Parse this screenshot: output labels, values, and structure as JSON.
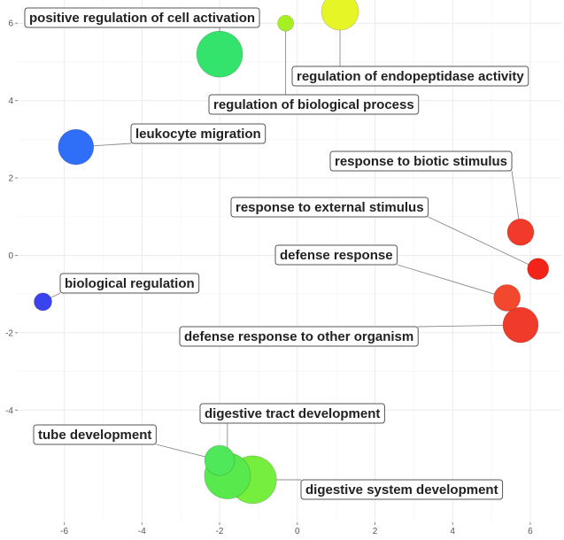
{
  "chart_data": {
    "type": "scatter",
    "title": "",
    "xlabel": "",
    "ylabel": "",
    "xlim": [
      -7.2,
      6.8
    ],
    "ylim": [
      -6.9,
      6.6
    ],
    "x_ticks": [
      -6,
      -4,
      -2,
      0,
      2,
      4,
      6
    ],
    "y_ticks": [
      -4,
      -2,
      0,
      2,
      4,
      6
    ],
    "x_tick_labels": [
      "-6",
      "-4",
      "-2",
      "0",
      "2",
      "4",
      "6"
    ],
    "y_tick_labels": [
      "-4",
      "-2",
      "0",
      "2",
      "4",
      "6"
    ],
    "grid": true,
    "legend": "none",
    "points": [
      {
        "label": "positive regulation of cell activation",
        "x": -2.0,
        "y": 5.2,
        "size": 26,
        "color": "#33e36b"
      },
      {
        "label": "regulation of biological process",
        "x": -0.3,
        "y": 6.0,
        "size": 9,
        "color": "#a6ef22"
      },
      {
        "label": "regulation of endopeptidase activity",
        "x": 1.1,
        "y": 6.3,
        "size": 21,
        "color": "#e6f526"
      },
      {
        "label": "leukocyte migration",
        "x": -5.7,
        "y": 2.8,
        "size": 20,
        "color": "#2f6ef6"
      },
      {
        "label": "response to biotic stimulus",
        "x": 5.75,
        "y": 0.6,
        "size": 15,
        "color": "#f23a2a"
      },
      {
        "label": "response to external stimulus",
        "x": 6.2,
        "y": -0.35,
        "size": 12,
        "color": "#f22318"
      },
      {
        "label": "defense response",
        "x": 5.4,
        "y": -1.1,
        "size": 15,
        "color": "#f2482e"
      },
      {
        "label": "defense response to other organism",
        "x": 5.75,
        "y": -1.8,
        "size": 20,
        "color": "#f03a2a"
      },
      {
        "label": "biological regulation",
        "x": -6.55,
        "y": -1.2,
        "size": 10,
        "color": "#3a44ee"
      },
      {
        "label": "digestive system development",
        "x": -1.15,
        "y": -5.8,
        "size": 27,
        "color": "#76ee3e"
      },
      {
        "label": "tube development",
        "x": -2.0,
        "y": -5.3,
        "size": 17,
        "color": "#4ee85a"
      },
      {
        "label": "digestive tract development",
        "x": -1.8,
        "y": -5.7,
        "size": 26,
        "color": "#58ea4c"
      }
    ]
  }
}
